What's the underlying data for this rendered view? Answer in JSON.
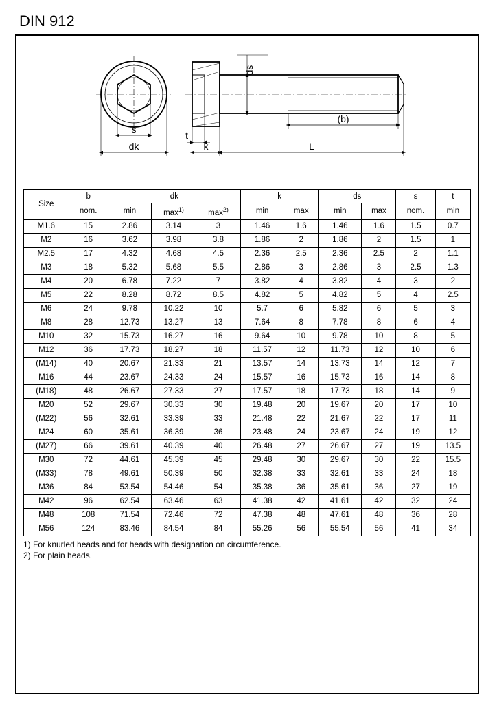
{
  "title": "DIN 912",
  "diagram": {
    "labels": {
      "s": "s",
      "dk": "dk",
      "t": "t",
      "k": "k",
      "ds": "ds",
      "b": "(b)",
      "L": "L"
    },
    "stroke": "#000000",
    "fill": "#ffffff"
  },
  "table": {
    "header1": {
      "size": "Size",
      "b": "b",
      "dk": "dk",
      "k": "k",
      "ds": "ds",
      "s": "s",
      "t": "t"
    },
    "header2": {
      "b_nom": "nom.",
      "dk_min": "min",
      "dk_max1": "max",
      "dk_max1_sup": "1)",
      "dk_max2": "max",
      "dk_max2_sup": "2)",
      "k_min": "min",
      "k_max": "max",
      "ds_min": "min",
      "ds_max": "max",
      "s_nom": "nom.",
      "t_min": "min"
    },
    "rows": [
      {
        "size": "M1.6",
        "b": "15",
        "dkmin": "2.86",
        "dkmax1": "3.14",
        "dkmax2": "3",
        "kmin": "1.46",
        "kmax": "1.6",
        "dsmin": "1.46",
        "dsmax": "1.6",
        "snom": "1.5",
        "tmin": "0.7"
      },
      {
        "size": "M2",
        "b": "16",
        "dkmin": "3.62",
        "dkmax1": "3.98",
        "dkmax2": "3.8",
        "kmin": "1.86",
        "kmax": "2",
        "dsmin": "1.86",
        "dsmax": "2",
        "snom": "1.5",
        "tmin": "1"
      },
      {
        "size": "M2.5",
        "b": "17",
        "dkmin": "4.32",
        "dkmax1": "4.68",
        "dkmax2": "4.5",
        "kmin": "2.36",
        "kmax": "2.5",
        "dsmin": "2.36",
        "dsmax": "2.5",
        "snom": "2",
        "tmin": "1.1"
      },
      {
        "size": "M3",
        "b": "18",
        "dkmin": "5.32",
        "dkmax1": "5.68",
        "dkmax2": "5.5",
        "kmin": "2.86",
        "kmax": "3",
        "dsmin": "2.86",
        "dsmax": "3",
        "snom": "2.5",
        "tmin": "1.3"
      },
      {
        "size": "M4",
        "b": "20",
        "dkmin": "6.78",
        "dkmax1": "7.22",
        "dkmax2": "7",
        "kmin": "3.82",
        "kmax": "4",
        "dsmin": "3.82",
        "dsmax": "4",
        "snom": "3",
        "tmin": "2"
      },
      {
        "size": "M5",
        "b": "22",
        "dkmin": "8.28",
        "dkmax1": "8.72",
        "dkmax2": "8.5",
        "kmin": "4.82",
        "kmax": "5",
        "dsmin": "4.82",
        "dsmax": "5",
        "snom": "4",
        "tmin": "2.5"
      },
      {
        "size": "M6",
        "b": "24",
        "dkmin": "9.78",
        "dkmax1": "10.22",
        "dkmax2": "10",
        "kmin": "5.7",
        "kmax": "6",
        "dsmin": "5.82",
        "dsmax": "6",
        "snom": "5",
        "tmin": "3"
      },
      {
        "size": "M8",
        "b": "28",
        "dkmin": "12.73",
        "dkmax1": "13.27",
        "dkmax2": "13",
        "kmin": "7.64",
        "kmax": "8",
        "dsmin": "7.78",
        "dsmax": "8",
        "snom": "6",
        "tmin": "4"
      },
      {
        "size": "M10",
        "b": "32",
        "dkmin": "15.73",
        "dkmax1": "16.27",
        "dkmax2": "16",
        "kmin": "9.64",
        "kmax": "10",
        "dsmin": "9.78",
        "dsmax": "10",
        "snom": "8",
        "tmin": "5"
      },
      {
        "size": "M12",
        "b": "36",
        "dkmin": "17.73",
        "dkmax1": "18.27",
        "dkmax2": "18",
        "kmin": "11.57",
        "kmax": "12",
        "dsmin": "11.73",
        "dsmax": "12",
        "snom": "10",
        "tmin": "6"
      },
      {
        "size": "(M14)",
        "b": "40",
        "dkmin": "20.67",
        "dkmax1": "21.33",
        "dkmax2": "21",
        "kmin": "13.57",
        "kmax": "14",
        "dsmin": "13.73",
        "dsmax": "14",
        "snom": "12",
        "tmin": "7"
      },
      {
        "size": "M16",
        "b": "44",
        "dkmin": "23.67",
        "dkmax1": "24.33",
        "dkmax2": "24",
        "kmin": "15.57",
        "kmax": "16",
        "dsmin": "15.73",
        "dsmax": "16",
        "snom": "14",
        "tmin": "8"
      },
      {
        "size": "(M18)",
        "b": "48",
        "dkmin": "26.67",
        "dkmax1": "27.33",
        "dkmax2": "27",
        "kmin": "17.57",
        "kmax": "18",
        "dsmin": "17.73",
        "dsmax": "18",
        "snom": "14",
        "tmin": "9"
      },
      {
        "size": "M20",
        "b": "52",
        "dkmin": "29.67",
        "dkmax1": "30.33",
        "dkmax2": "30",
        "kmin": "19.48",
        "kmax": "20",
        "dsmin": "19.67",
        "dsmax": "20",
        "snom": "17",
        "tmin": "10"
      },
      {
        "size": "(M22)",
        "b": "56",
        "dkmin": "32.61",
        "dkmax1": "33.39",
        "dkmax2": "33",
        "kmin": "21.48",
        "kmax": "22",
        "dsmin": "21.67",
        "dsmax": "22",
        "snom": "17",
        "tmin": "11"
      },
      {
        "size": "M24",
        "b": "60",
        "dkmin": "35.61",
        "dkmax1": "36.39",
        "dkmax2": "36",
        "kmin": "23.48",
        "kmax": "24",
        "dsmin": "23.67",
        "dsmax": "24",
        "snom": "19",
        "tmin": "12"
      },
      {
        "size": "(M27)",
        "b": "66",
        "dkmin": "39.61",
        "dkmax1": "40.39",
        "dkmax2": "40",
        "kmin": "26.48",
        "kmax": "27",
        "dsmin": "26.67",
        "dsmax": "27",
        "snom": "19",
        "tmin": "13.5"
      },
      {
        "size": "M30",
        "b": "72",
        "dkmin": "44.61",
        "dkmax1": "45.39",
        "dkmax2": "45",
        "kmin": "29.48",
        "kmax": "30",
        "dsmin": "29.67",
        "dsmax": "30",
        "snom": "22",
        "tmin": "15.5"
      },
      {
        "size": "(M33)",
        "b": "78",
        "dkmin": "49.61",
        "dkmax1": "50.39",
        "dkmax2": "50",
        "kmin": "32.38",
        "kmax": "33",
        "dsmin": "32.61",
        "dsmax": "33",
        "snom": "24",
        "tmin": "18"
      },
      {
        "size": "M36",
        "b": "84",
        "dkmin": "53.54",
        "dkmax1": "54.46",
        "dkmax2": "54",
        "kmin": "35.38",
        "kmax": "36",
        "dsmin": "35.61",
        "dsmax": "36",
        "snom": "27",
        "tmin": "19"
      },
      {
        "size": "M42",
        "b": "96",
        "dkmin": "62.54",
        "dkmax1": "63.46",
        "dkmax2": "63",
        "kmin": "41.38",
        "kmax": "42",
        "dsmin": "41.61",
        "dsmax": "42",
        "snom": "32",
        "tmin": "24"
      },
      {
        "size": "M48",
        "b": "108",
        "dkmin": "71.54",
        "dkmax1": "72.46",
        "dkmax2": "72",
        "kmin": "47.38",
        "kmax": "48",
        "dsmin": "47.61",
        "dsmax": "48",
        "snom": "36",
        "tmin": "28"
      },
      {
        "size": "M56",
        "b": "124",
        "dkmin": "83.46",
        "dkmax1": "84.54",
        "dkmax2": "84",
        "kmin": "55.26",
        "kmax": "56",
        "dsmin": "55.54",
        "dsmax": "56",
        "snom": "41",
        "tmin": "34"
      }
    ]
  },
  "footnotes": {
    "n1": "1) For knurled heads and for heads with designation on circumference.",
    "n2": "2) For plain heads."
  }
}
